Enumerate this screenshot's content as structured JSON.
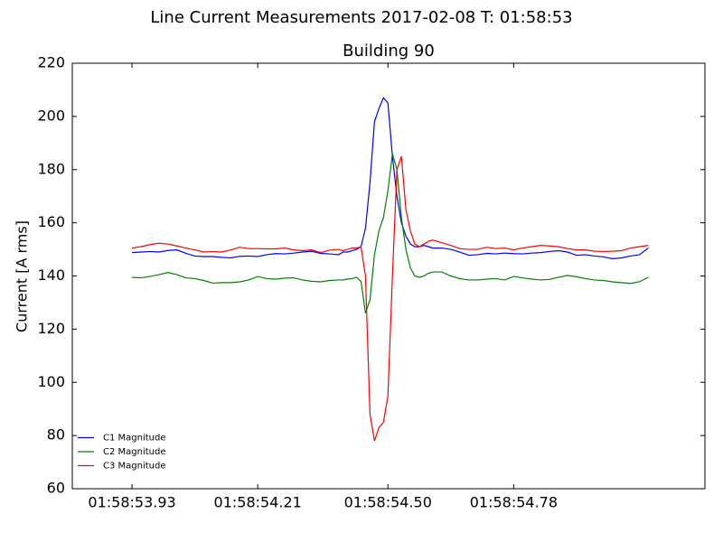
{
  "chart_data": {
    "type": "line",
    "suptitle": "Line Current Measurements 2017-02-08 T: 01:58:53",
    "title": "Building 90",
    "ylabel": "Current [A rms]",
    "x": [
      53.93,
      53.95,
      53.97,
      53.99,
      54.01,
      54.03,
      54.05,
      54.07,
      54.09,
      54.11,
      54.13,
      54.15,
      54.17,
      54.19,
      54.21,
      54.23,
      54.25,
      54.27,
      54.29,
      54.31,
      54.33,
      54.35,
      54.37,
      54.39,
      54.4,
      54.41,
      54.42,
      54.43,
      54.44,
      54.45,
      54.46,
      54.47,
      54.48,
      54.49,
      54.5,
      54.51,
      54.52,
      54.53,
      54.54,
      54.55,
      54.56,
      54.57,
      54.58,
      54.59,
      54.6,
      54.62,
      54.64,
      54.66,
      54.68,
      54.7,
      54.72,
      54.74,
      54.76,
      54.78,
      54.8,
      54.82,
      54.84,
      54.86,
      54.88,
      54.9,
      54.92,
      54.94,
      54.96,
      54.98,
      55.0,
      55.02,
      55.04,
      55.06,
      55.08
    ],
    "series": [
      {
        "name": "C1 Magnitude",
        "color": "#0000ff",
        "values": [
          148.8,
          149,
          149.2,
          149,
          149.6,
          149.8,
          148.5,
          147.5,
          147.3,
          147.3,
          147,
          146.8,
          147.4,
          147.5,
          147.3,
          148,
          148.4,
          148.3,
          148.6,
          149,
          149.3,
          148.5,
          148.3,
          148,
          149,
          149,
          149.5,
          150,
          151,
          158,
          175,
          198,
          203,
          207,
          205,
          185,
          170,
          160,
          155,
          152,
          151,
          151,
          151.5,
          151,
          150.5,
          150.5,
          150,
          149,
          147.8,
          148,
          148.5,
          148.3,
          148.6,
          148.4,
          148.3,
          148.6,
          148.8,
          149.2,
          149.5,
          149,
          147.8,
          148,
          147.5,
          147.2,
          146.5,
          146.8,
          147.5,
          148,
          150.5
        ]
      },
      {
        "name": "C2 Magnitude",
        "color": "#008000",
        "values": [
          139.5,
          139.3,
          139.8,
          140.5,
          141.3,
          140.5,
          139.3,
          139,
          138.3,
          137.3,
          137.5,
          137.5,
          137.8,
          138.5,
          139.8,
          139,
          138.8,
          139.2,
          139.3,
          138.5,
          138,
          137.8,
          138.3,
          138.5,
          138.5,
          138.8,
          139,
          139.5,
          138,
          126,
          131,
          148,
          157,
          162,
          172,
          186,
          180,
          162,
          150,
          143,
          140,
          139.5,
          140,
          141,
          141.5,
          141.5,
          140,
          139,
          138.5,
          138.5,
          138.8,
          139,
          138.5,
          139.8,
          139.3,
          138.8,
          138.5,
          138.7,
          139.5,
          140.2,
          139.7,
          139,
          138.5,
          138.3,
          137.8,
          137.5,
          137.2,
          137.8,
          139.5
        ]
      },
      {
        "name": "C3 Magnitude",
        "color": "#ff0000",
        "values": [
          150.5,
          151,
          151.8,
          152.3,
          152,
          151.3,
          150.5,
          149.8,
          149,
          149.2,
          149,
          149.8,
          150.8,
          150.3,
          150.3,
          150.2,
          150.2,
          150.5,
          149.8,
          149.5,
          149.8,
          148.8,
          149.7,
          150,
          149.5,
          150,
          150.5,
          150.5,
          151,
          140,
          88,
          78,
          83,
          85,
          95,
          140,
          180,
          185,
          165,
          157,
          152,
          151,
          152,
          153,
          153.5,
          152.5,
          151.5,
          150.3,
          150,
          150,
          150.8,
          150.3,
          150.5,
          149.8,
          150.5,
          151,
          151.5,
          151.3,
          151,
          150.3,
          149.8,
          149.8,
          149.3,
          149.2,
          149.3,
          149.5,
          150.5,
          151,
          151.5
        ]
      }
    ],
    "xlim": [
      53.797,
      55.206
    ],
    "xticks": [
      {
        "value": 53.93,
        "label": "01:58:53.93"
      },
      {
        "value": 54.21,
        "label": "01:58:54.21"
      },
      {
        "value": 54.5,
        "label": "01:58:54.50"
      },
      {
        "value": 54.78,
        "label": "01:58:54.78"
      }
    ],
    "ylim": [
      60,
      220
    ],
    "yticks": [
      60,
      80,
      100,
      120,
      140,
      160,
      180,
      200,
      220
    ],
    "legend": "lower left"
  }
}
